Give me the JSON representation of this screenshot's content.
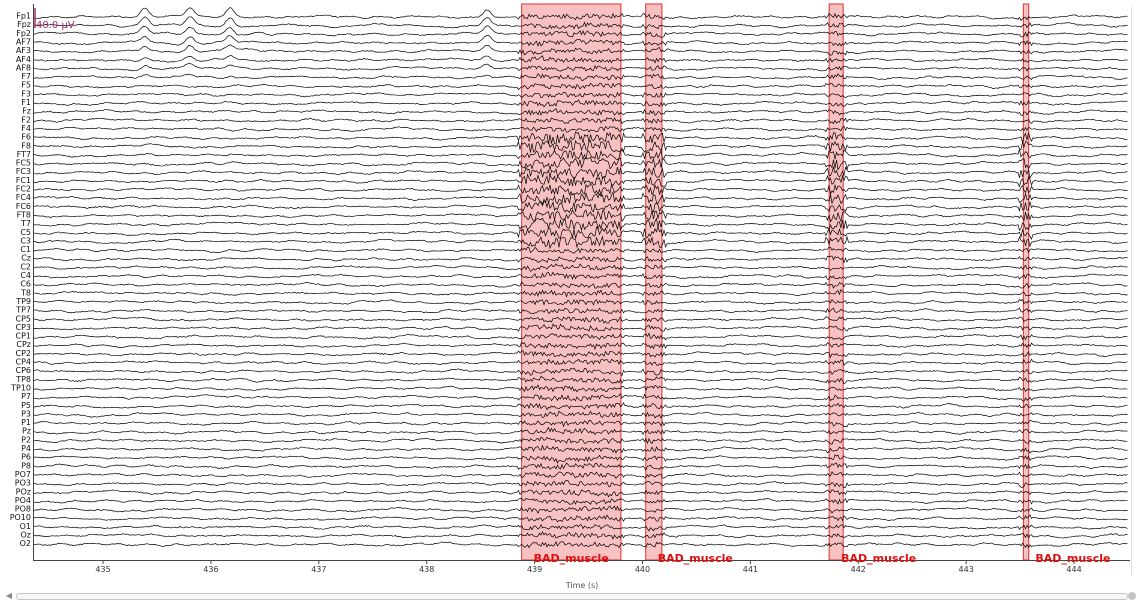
{
  "viewer": {
    "scale_label": "40.0 µV",
    "x_axis_label": "Time (s)"
  },
  "channels": [
    "Fp1",
    "Fpz",
    "Fp2",
    "AF7",
    "AF3",
    "AF4",
    "AF8",
    "F7",
    "F5",
    "F3",
    "F1",
    "Fz",
    "F2",
    "F4",
    "F6",
    "F8",
    "FT7",
    "FC5",
    "FC3",
    "FC1",
    "FC2",
    "FC4",
    "FC6",
    "FT8",
    "T7",
    "C5",
    "C3",
    "C1",
    "Cz",
    "C2",
    "C4",
    "C6",
    "T8",
    "TP9",
    "TP7",
    "CP5",
    "CP3",
    "CP1",
    "CPz",
    "CP2",
    "CP4",
    "CP6",
    "TP8",
    "TP10",
    "P7",
    "P5",
    "P3",
    "P1",
    "Pz",
    "P2",
    "P4",
    "P6",
    "P8",
    "PO7",
    "PO3",
    "POz",
    "PO4",
    "PO8",
    "PO10",
    "O1",
    "Oz",
    "O2"
  ],
  "time_ticks": [
    {
      "value": 435,
      "label": "435"
    },
    {
      "value": 436,
      "label": "436"
    },
    {
      "value": 437,
      "label": "437"
    },
    {
      "value": 438,
      "label": "438"
    },
    {
      "value": 439,
      "label": "439"
    },
    {
      "value": 440,
      "label": "440"
    },
    {
      "value": 441,
      "label": "441"
    },
    {
      "value": 442,
      "label": "442"
    },
    {
      "value": 443,
      "label": "443"
    },
    {
      "value": 444,
      "label": "444"
    }
  ],
  "time_range": [
    434.36,
    444.5
  ],
  "annotations": [
    {
      "start": 438.88,
      "end": 439.8,
      "label": "BAD_muscle"
    },
    {
      "start": 440.03,
      "end": 440.18,
      "label": "BAD_muscle"
    },
    {
      "start": 441.73,
      "end": 441.86,
      "label": "BAD_muscle"
    },
    {
      "start": 443.53,
      "end": 443.58,
      "label": "BAD_muscle"
    }
  ],
  "colors": {
    "trace": "#000000",
    "annotation_fill": "#f4a6a6",
    "annotation_edge": "#e03030",
    "annotation_label": "#e01010",
    "scale_label": "#a0306a"
  },
  "icons": {
    "scroll_left": "arrow-left-icon",
    "scroll_handle": "scroll-handle-icon"
  }
}
